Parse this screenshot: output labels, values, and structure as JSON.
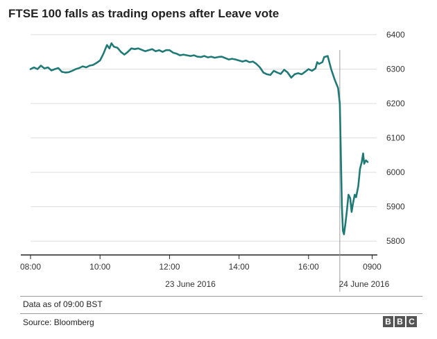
{
  "title": "FTSE 100 falls as trading opens after Leave vote",
  "note": "Data as of 09:00 BST",
  "source": "Source: Bloomberg",
  "logo_letters": [
    "B",
    "B",
    "C"
  ],
  "colors": {
    "line": "#1f7a77",
    "grid": "#dddddd",
    "axis": "#222222",
    "logo": "#555555"
  },
  "chart_data": {
    "type": "line",
    "title": "FTSE 100 falls as trading opens after Leave vote",
    "ylim": [
      5760,
      6420
    ],
    "y_ticks": [
      5800,
      5900,
      6000,
      6100,
      6200,
      6300,
      6400
    ],
    "y_tick_labels": [
      "5800",
      "5900",
      "6000",
      "6100",
      "6200",
      "6300",
      "6400"
    ],
    "x_ticks": [
      {
        "pos": 8.0,
        "label": "08:00"
      },
      {
        "pos": 10.0,
        "label": "10:00"
      },
      {
        "pos": 12.0,
        "label": "12:00"
      },
      {
        "pos": 14.0,
        "label": "14:00"
      },
      {
        "pos": 16.0,
        "label": "16:00"
      },
      {
        "pos": 17.83,
        "label": "0900"
      }
    ],
    "date_labels": [
      {
        "pos": 12.6,
        "label": "23 June 2016"
      },
      {
        "pos": 17.6,
        "label": "24 June 2016"
      }
    ],
    "session_break": 16.9,
    "grid": true,
    "series": [
      {
        "values": [
          [
            8.0,
            6300
          ],
          [
            8.1,
            6305
          ],
          [
            8.2,
            6300
          ],
          [
            8.3,
            6310
          ],
          [
            8.4,
            6302
          ],
          [
            8.5,
            6305
          ],
          [
            8.6,
            6296
          ],
          [
            8.7,
            6300
          ],
          [
            8.8,
            6303
          ],
          [
            8.9,
            6292
          ],
          [
            9.0,
            6290
          ],
          [
            9.1,
            6291
          ],
          [
            9.2,
            6295
          ],
          [
            9.3,
            6300
          ],
          [
            9.4,
            6303
          ],
          [
            9.5,
            6308
          ],
          [
            9.6,
            6305
          ],
          [
            9.7,
            6310
          ],
          [
            9.8,
            6312
          ],
          [
            9.9,
            6318
          ],
          [
            10.0,
            6325
          ],
          [
            10.1,
            6345
          ],
          [
            10.2,
            6370
          ],
          [
            10.27,
            6360
          ],
          [
            10.33,
            6375
          ],
          [
            10.4,
            6365
          ],
          [
            10.5,
            6362
          ],
          [
            10.6,
            6350
          ],
          [
            10.7,
            6342
          ],
          [
            10.8,
            6350
          ],
          [
            10.9,
            6360
          ],
          [
            11.0,
            6358
          ],
          [
            11.1,
            6360
          ],
          [
            11.2,
            6356
          ],
          [
            11.3,
            6352
          ],
          [
            11.4,
            6355
          ],
          [
            11.5,
            6358
          ],
          [
            11.6,
            6352
          ],
          [
            11.7,
            6355
          ],
          [
            11.8,
            6350
          ],
          [
            11.9,
            6355
          ],
          [
            12.0,
            6355
          ],
          [
            12.1,
            6348
          ],
          [
            12.2,
            6345
          ],
          [
            12.3,
            6340
          ],
          [
            12.4,
            6342
          ],
          [
            12.5,
            6340
          ],
          [
            12.6,
            6338
          ],
          [
            12.7,
            6340
          ],
          [
            12.8,
            6336
          ],
          [
            12.9,
            6335
          ],
          [
            13.0,
            6338
          ],
          [
            13.1,
            6334
          ],
          [
            13.2,
            6336
          ],
          [
            13.3,
            6333
          ],
          [
            13.4,
            6335
          ],
          [
            13.5,
            6336
          ],
          [
            13.6,
            6332
          ],
          [
            13.7,
            6328
          ],
          [
            13.8,
            6330
          ],
          [
            13.9,
            6328
          ],
          [
            14.0,
            6325
          ],
          [
            14.1,
            6322
          ],
          [
            14.2,
            6325
          ],
          [
            14.3,
            6320
          ],
          [
            14.4,
            6322
          ],
          [
            14.5,
            6315
          ],
          [
            14.6,
            6305
          ],
          [
            14.7,
            6290
          ],
          [
            14.8,
            6285
          ],
          [
            14.9,
            6283
          ],
          [
            15.0,
            6295
          ],
          [
            15.1,
            6290
          ],
          [
            15.2,
            6286
          ],
          [
            15.3,
            6298
          ],
          [
            15.4,
            6290
          ],
          [
            15.5,
            6275
          ],
          [
            15.6,
            6285
          ],
          [
            15.7,
            6288
          ],
          [
            15.8,
            6285
          ],
          [
            15.9,
            6292
          ],
          [
            16.0,
            6300
          ],
          [
            16.1,
            6295
          ],
          [
            16.2,
            6302
          ],
          [
            16.25,
            6320
          ],
          [
            16.3,
            6315
          ],
          [
            16.4,
            6320
          ],
          [
            16.45,
            6335
          ],
          [
            16.55,
            6338
          ],
          [
            16.65,
            6300
          ],
          [
            16.75,
            6270
          ],
          [
            16.85,
            6245
          ],
          [
            16.9,
            6200
          ],
          [
            16.93,
            6050
          ],
          [
            16.96,
            5900
          ],
          [
            16.99,
            5830
          ],
          [
            17.02,
            5820
          ],
          [
            17.06,
            5850
          ],
          [
            17.1,
            5885
          ],
          [
            17.15,
            5935
          ],
          [
            17.2,
            5925
          ],
          [
            17.24,
            5885
          ],
          [
            17.28,
            5910
          ],
          [
            17.33,
            5935
          ],
          [
            17.37,
            5928
          ],
          [
            17.43,
            5960
          ],
          [
            17.48,
            6010
          ],
          [
            17.53,
            6030
          ],
          [
            17.57,
            6055
          ],
          [
            17.6,
            6025
          ],
          [
            17.65,
            6035
          ],
          [
            17.7,
            6030
          ]
        ]
      }
    ]
  }
}
